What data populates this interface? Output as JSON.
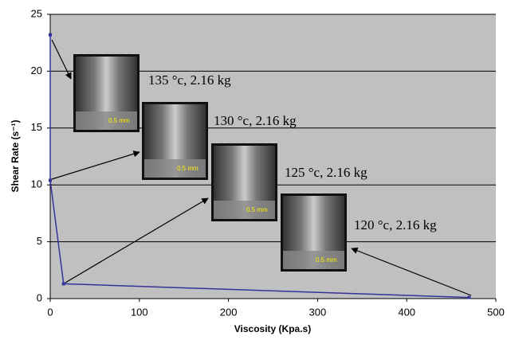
{
  "chart_data": {
    "type": "line",
    "x_label": "Viscosity (Kpa.s)",
    "y_label": "Shear Rate (s⁻¹)",
    "x": [
      0,
      0,
      15,
      470
    ],
    "series": [
      {
        "color": "#333399",
        "values": [
          23.2,
          10.4,
          1.3,
          0.1
        ]
      }
    ],
    "xlim": [
      0,
      500
    ],
    "xticks": [
      0,
      100,
      200,
      300,
      400,
      500
    ],
    "ylim": [
      0,
      25
    ],
    "yticks": [
      0,
      5,
      10,
      15,
      20,
      25
    ],
    "grid": true,
    "annotations": [
      {
        "text": "135 °c, 2.16 kg",
        "scale": "0.5 mm"
      },
      {
        "text": "130 °c, 2.16 kg",
        "scale": "0.5 mm"
      },
      {
        "text": "125 °c, 2.16 kg",
        "scale": "0.5 mm"
      },
      {
        "text": "120 °c, 2.16 kg",
        "scale": "0.5 mm"
      }
    ]
  }
}
